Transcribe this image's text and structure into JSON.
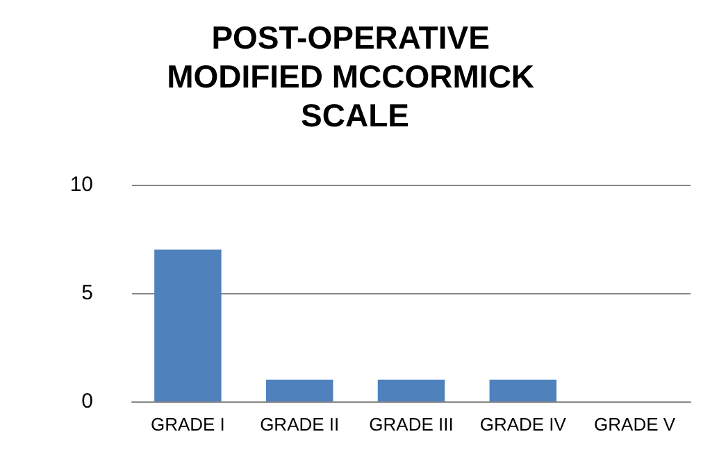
{
  "chart_data": {
    "type": "bar",
    "title": "POST-OPERATIVE MODIFIED MCCORMICK SCALE",
    "categories": [
      "GRADE I",
      "GRADE II",
      "GRADE III",
      "GRADE IV",
      "GRADE V"
    ],
    "values": [
      7,
      1,
      1,
      1,
      0
    ],
    "color": "#4f81bd",
    "ylim": [
      0,
      10
    ],
    "yticks": [
      0,
      5,
      10
    ],
    "grid": "y"
  }
}
